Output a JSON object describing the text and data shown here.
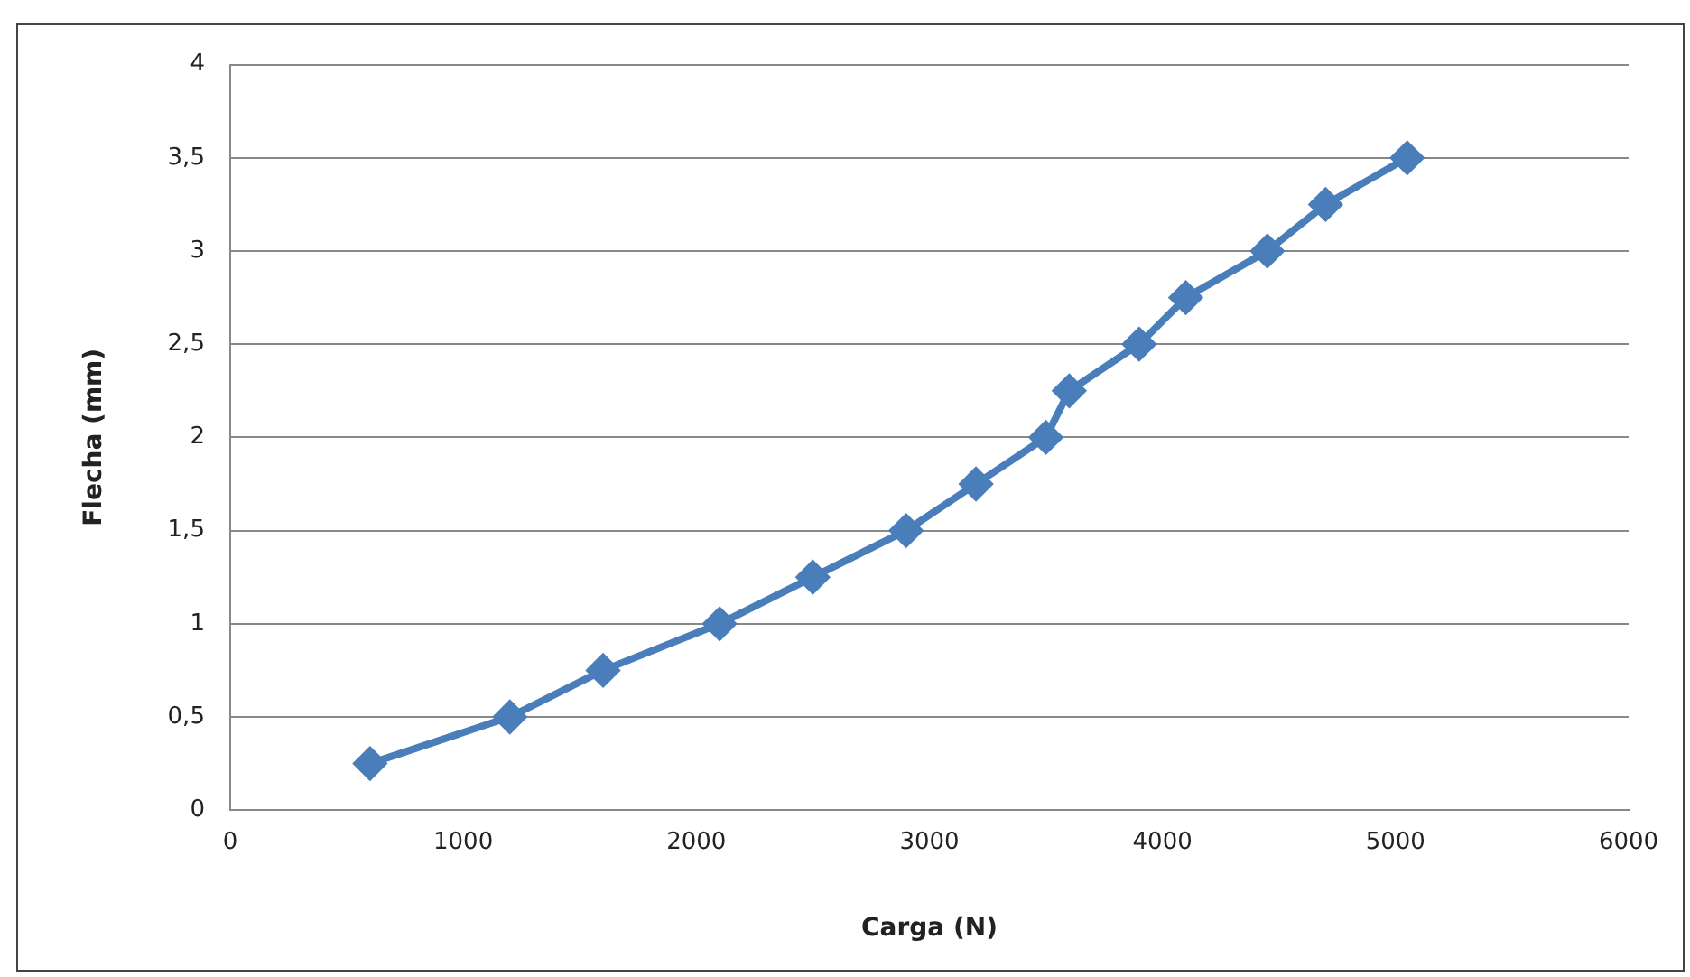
{
  "chart_data": {
    "type": "line",
    "xlabel": "Carga (N)",
    "ylabel": "Flecha (mm)",
    "x": [
      600,
      1200,
      1600,
      2100,
      2500,
      2900,
      3200,
      3500,
      3600,
      3900,
      4100,
      4450,
      4700,
      5050
    ],
    "series": [
      {
        "color": "#4a7ebb",
        "values": [
          0.25,
          0.5,
          0.75,
          1,
          1.25,
          1.5,
          1.75,
          2,
          2.25,
          2.5,
          2.75,
          3,
          3.25,
          3.5
        ]
      }
    ],
    "xlim": [
      0,
      6000
    ],
    "xticks": [
      0,
      1000,
      2000,
      3000,
      4000,
      5000,
      6000
    ],
    "ylim": [
      0,
      4
    ],
    "yticks": [
      0,
      {
        "value": 0.5,
        "label": "0,5"
      },
      1,
      {
        "value": 1.5,
        "label": "1,5"
      },
      2,
      {
        "value": 2.5,
        "label": "2,5"
      },
      3,
      {
        "value": 3.5,
        "label": "3,5"
      },
      4
    ],
    "grid": "y",
    "legend": false,
    "marker": "diamond",
    "line_style": "solid"
  }
}
